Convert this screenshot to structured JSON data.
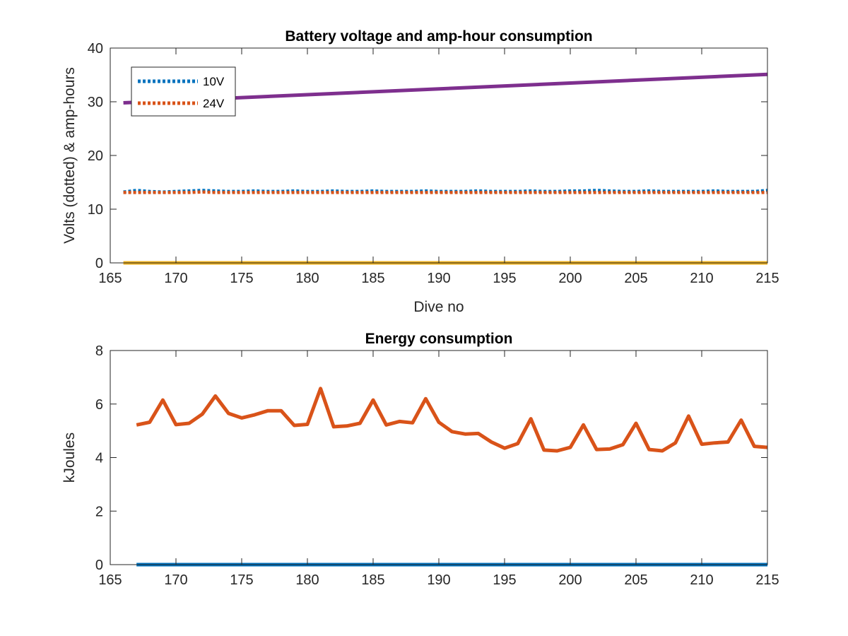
{
  "chart_data": [
    {
      "type": "line",
      "title": "Battery voltage and amp-hour consumption",
      "xlabel": "Dive no",
      "ylabel": "Volts (dotted) & amp-hours",
      "xlim": [
        165,
        215
      ],
      "ylim": [
        0,
        40
      ],
      "xticks": [
        165,
        170,
        175,
        180,
        185,
        190,
        195,
        200,
        205,
        210,
        215
      ],
      "yticks": [
        0,
        10,
        20,
        30,
        40
      ],
      "grid": false,
      "legend": {
        "position": "top-left",
        "entries": [
          "10V",
          "24V"
        ]
      },
      "series": [
        {
          "name": "10V",
          "style": "dotted",
          "color": "#0072BD",
          "x": [
            166,
            167,
            168,
            169,
            170,
            171,
            172,
            173,
            174,
            175,
            176,
            177,
            178,
            179,
            180,
            181,
            182,
            183,
            184,
            185,
            186,
            187,
            188,
            189,
            190,
            191,
            192,
            193,
            194,
            195,
            196,
            197,
            198,
            199,
            200,
            201,
            202,
            203,
            204,
            205,
            206,
            207,
            208,
            209,
            210,
            211,
            212,
            213,
            214,
            215
          ],
          "y": [
            13.2,
            13.5,
            13.3,
            13.2,
            13.3,
            13.4,
            13.5,
            13.4,
            13.3,
            13.3,
            13.4,
            13.3,
            13.3,
            13.4,
            13.3,
            13.3,
            13.4,
            13.3,
            13.3,
            13.4,
            13.3,
            13.3,
            13.3,
            13.4,
            13.3,
            13.3,
            13.3,
            13.4,
            13.3,
            13.3,
            13.3,
            13.4,
            13.3,
            13.3,
            13.4,
            13.4,
            13.5,
            13.4,
            13.3,
            13.3,
            13.4,
            13.3,
            13.3,
            13.3,
            13.3,
            13.4,
            13.3,
            13.3,
            13.3,
            13.5
          ]
        },
        {
          "name": "24V",
          "style": "dotted",
          "color": "#D95319",
          "x": [
            166,
            167,
            168,
            169,
            170,
            171,
            172,
            173,
            174,
            175,
            176,
            177,
            178,
            179,
            180,
            181,
            182,
            183,
            184,
            185,
            186,
            187,
            188,
            189,
            190,
            191,
            192,
            193,
            194,
            195,
            196,
            197,
            198,
            199,
            200,
            201,
            202,
            203,
            204,
            205,
            206,
            207,
            208,
            209,
            210,
            211,
            212,
            213,
            214,
            215
          ],
          "y": [
            13.1,
            13.1,
            13.1,
            13.1,
            13.1,
            13.1,
            13.2,
            13.1,
            13.1,
            13.1,
            13.1,
            13.1,
            13.1,
            13.1,
            13.1,
            13.1,
            13.1,
            13.1,
            13.1,
            13.1,
            13.1,
            13.1,
            13.1,
            13.1,
            13.1,
            13.1,
            13.1,
            13.1,
            13.1,
            13.1,
            13.1,
            13.1,
            13.1,
            13.1,
            13.1,
            13.1,
            13.1,
            13.1,
            13.1,
            13.1,
            13.1,
            13.1,
            13.1,
            13.1,
            13.1,
            13.1,
            13.1,
            13.1,
            13.1,
            13.1
          ]
        },
        {
          "style": "solid",
          "color": "#7E2F8E",
          "x": [
            166,
            215
          ],
          "y": [
            29.8,
            35.1
          ]
        },
        {
          "style": "solid",
          "color": "#EDB120",
          "x": [
            166,
            215
          ],
          "y": [
            0,
            0
          ]
        }
      ]
    },
    {
      "type": "line",
      "title": "Energy consumption",
      "xlabel": "",
      "ylabel": "kJoules",
      "xlim": [
        165,
        215
      ],
      "ylim": [
        0,
        8
      ],
      "xticks": [
        165,
        170,
        175,
        180,
        185,
        190,
        195,
        200,
        205,
        210,
        215
      ],
      "yticks": [
        0,
        2,
        4,
        6,
        8
      ],
      "grid": false,
      "series": [
        {
          "style": "solid",
          "color": "#D95319",
          "x": [
            167,
            168,
            169,
            170,
            171,
            172,
            173,
            174,
            175,
            176,
            177,
            178,
            179,
            180,
            181,
            182,
            183,
            184,
            185,
            186,
            187,
            188,
            189,
            190,
            191,
            192,
            193,
            194,
            195,
            196,
            197,
            198,
            199,
            200,
            201,
            202,
            203,
            204,
            205,
            206,
            207,
            208,
            209,
            210,
            211,
            212,
            213,
            214,
            215
          ],
          "y": [
            5.22,
            5.32,
            6.15,
            5.23,
            5.28,
            5.62,
            6.3,
            5.65,
            5.48,
            5.6,
            5.75,
            5.75,
            5.2,
            5.24,
            6.58,
            5.15,
            5.18,
            5.28,
            6.15,
            5.22,
            5.35,
            5.3,
            6.2,
            5.32,
            4.97,
            4.88,
            4.9,
            4.58,
            4.35,
            4.52,
            5.45,
            4.28,
            4.25,
            4.38,
            5.22,
            4.3,
            4.32,
            4.48,
            5.28,
            4.3,
            4.25,
            4.55,
            5.55,
            4.5,
            4.55,
            4.58,
            5.4,
            4.42,
            4.38
          ]
        },
        {
          "style": "solid",
          "color": "#0072BD",
          "x": [
            167,
            215
          ],
          "y": [
            0,
            0
          ]
        }
      ]
    }
  ]
}
